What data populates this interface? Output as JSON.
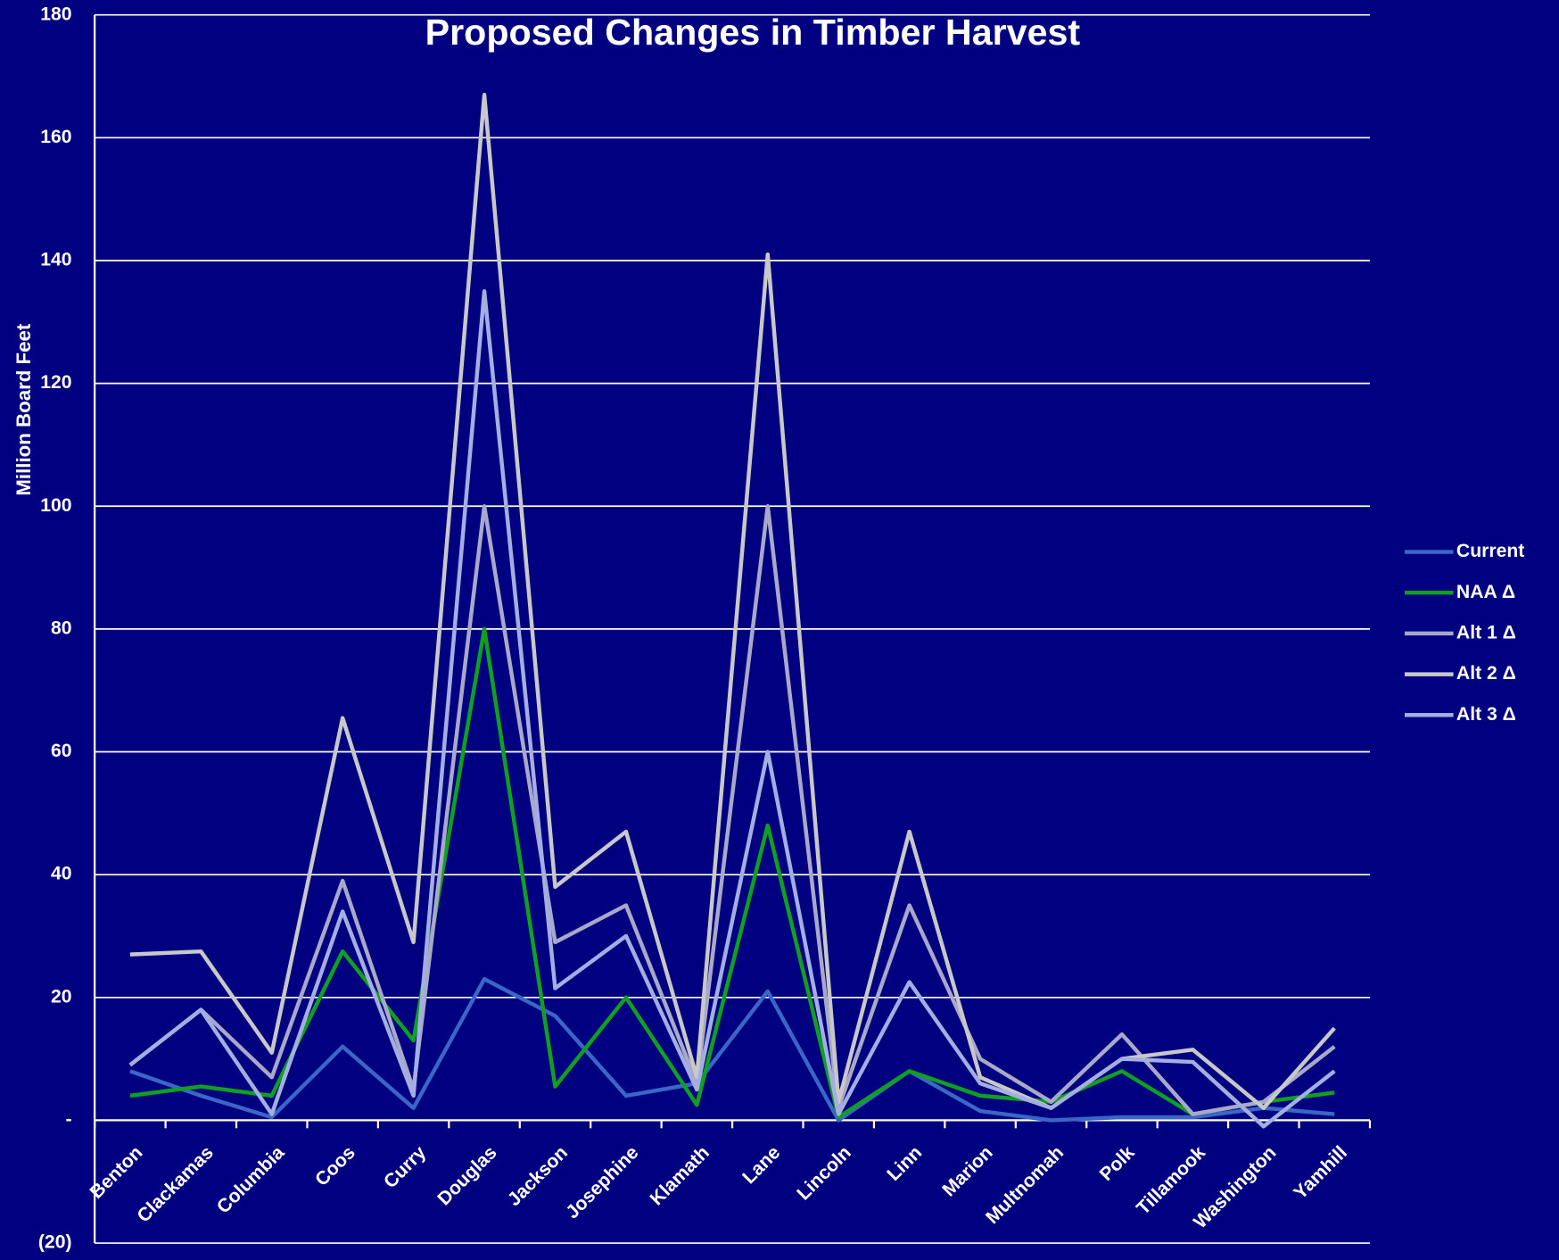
{
  "chart_data": {
    "type": "line",
    "title": "Proposed Changes in Timber Harvest",
    "y_label": "Million Board Feet",
    "categories": [
      "Benton",
      "Clackamas",
      "Columbia",
      "Coos",
      "Curry",
      "Douglas",
      "Jackson",
      "Josephine",
      "Klamath",
      "Lane",
      "Lincoln",
      "Linn",
      "Marion",
      "Multnomah",
      "Polk",
      "Tillamook",
      "Washington",
      "Yamhill"
    ],
    "series": [
      {
        "name": "Current",
        "color": "#3a66c8",
        "values": [
          8,
          4,
          0.5,
          12,
          2,
          23,
          17,
          4,
          6,
          21,
          0,
          8,
          1.5,
          0,
          0.5,
          0.5,
          2,
          1
        ]
      },
      {
        "name": "NAA Δ",
        "color": "#10a020",
        "values": [
          4,
          5.5,
          4,
          27.5,
          13,
          80,
          5.5,
          20,
          2.5,
          48,
          0.5,
          8,
          4,
          3,
          8,
          1,
          3,
          4.5
        ]
      },
      {
        "name": "Alt 1 Δ",
        "color": "#a8a8c8",
        "values": [
          9,
          18,
          7,
          39,
          5,
          100,
          29,
          35,
          6,
          100,
          2,
          35,
          10,
          3,
          14,
          1,
          3,
          12
        ]
      },
      {
        "name": "Alt 2 Δ",
        "color": "#c8c8c8",
        "values": [
          27,
          27.5,
          11,
          65.5,
          29,
          167,
          38,
          47,
          7,
          141,
          3,
          47,
          7,
          2,
          10,
          11.5,
          2,
          15
        ]
      },
      {
        "name": "Alt 3 Δ",
        "color": "#a4aee0",
        "values": [
          9,
          18,
          1,
          34,
          4,
          135,
          21.5,
          30,
          5,
          60,
          1,
          22.5,
          6,
          2,
          10,
          9.5,
          -1,
          8
        ]
      }
    ],
    "ylim": [
      -20,
      180
    ],
    "yticks": [
      {
        "value": -20,
        "label": "(20)"
      },
      {
        "value": 0,
        "label": "-"
      },
      20,
      40,
      60,
      80,
      100,
      120,
      140,
      160,
      180
    ],
    "grid": true,
    "legend": "right"
  }
}
